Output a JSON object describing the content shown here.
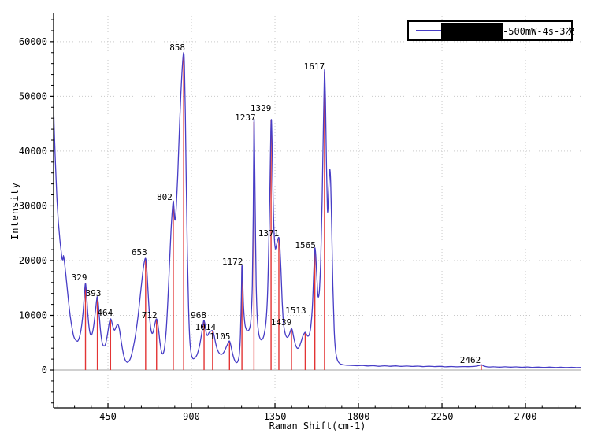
{
  "axes": {
    "x_title": "Raman Shift(cm-1)",
    "y_title": "Intensity"
  },
  "legend": {
    "label": "-500mW-4s-3次",
    "redacted": true,
    "position": "top-right"
  },
  "colors": {
    "line": "#473dc6",
    "peak_marker": "#e33434",
    "grid_dotted": "#c9c9c9",
    "zero_line": "#b3b3b3",
    "axis": "#000000",
    "text": "#000000",
    "background": "#ffffff"
  },
  "chart_data": {
    "type": "line",
    "title": "",
    "xlabel": "Raman Shift(cm-1)",
    "ylabel": "Intensity",
    "xlim": [
      157,
      2997
    ],
    "ylim": [
      -6900,
      65300
    ],
    "x_major_ticks": [
      450,
      900,
      1350,
      1800,
      2250,
      2700
    ],
    "x_minor_step": 90,
    "y_major_ticks": [
      0,
      10000,
      20000,
      30000,
      40000,
      50000,
      60000
    ],
    "y_minor_step": 2000,
    "grid": "dotted-at-major-ticks",
    "legend_entries": [
      {
        "label": "-500mW-4s-3次",
        "color": "#473dc6"
      }
    ],
    "peaks": [
      {
        "label": "329",
        "x": 329,
        "intensity": 15800,
        "label_offset": [
          -8,
          -8
        ]
      },
      {
        "label": "393",
        "x": 393,
        "intensity": 13400,
        "label_offset": [
          -5,
          -5
        ]
      },
      {
        "label": "464",
        "x": 464,
        "intensity": 9350,
        "label_offset": [
          -7,
          -8
        ]
      },
      {
        "label": "653",
        "x": 653,
        "intensity": 20400,
        "label_offset": [
          -8,
          -8
        ]
      },
      {
        "label": "712",
        "x": 712,
        "intensity": 9350,
        "label_offset": [
          -9,
          -5
        ]
      },
      {
        "label": "802",
        "x": 802,
        "intensity": 30900,
        "label_offset": [
          -11,
          -5
        ]
      },
      {
        "label": "858",
        "x": 858,
        "intensity": 58000,
        "label_offset": [
          -8,
          -7
        ]
      },
      {
        "label": "968",
        "x": 968,
        "intensity": 9100,
        "label_offset": [
          -7,
          -7
        ]
      },
      {
        "label": "1014",
        "x": 1014,
        "intensity": 7200,
        "label_offset": [
          -9,
          -5
        ]
      },
      {
        "label": "1105",
        "x": 1105,
        "intensity": 5300,
        "label_offset": [
          -12,
          -6
        ]
      },
      {
        "label": "1172",
        "x": 1172,
        "intensity": 19000,
        "label_offset": [
          -12,
          -6
        ]
      },
      {
        "label": "1237",
        "x": 1237,
        "intensity": 45300,
        "label_offset": [
          -11,
          -6
        ]
      },
      {
        "label": "1329",
        "x": 1329,
        "intensity": 45600,
        "label_offset": [
          -13,
          -16
        ]
      },
      {
        "label": "1371",
        "x": 1371,
        "intensity": 24200,
        "label_offset": [
          -13,
          -6
        ]
      },
      {
        "label": "1439",
        "x": 1439,
        "intensity": 7600,
        "label_offset": [
          -13,
          -8
        ]
      },
      {
        "label": "1513",
        "x": 1513,
        "intensity": 6900,
        "label_offset": [
          -12,
          -28
        ]
      },
      {
        "label": "1565",
        "x": 1565,
        "intensity": 22300,
        "label_offset": [
          -12,
          -4
        ]
      },
      {
        "label": "1617",
        "x": 1617,
        "intensity": 54400,
        "label_offset": [
          -13,
          -8
        ]
      },
      {
        "label": "2462",
        "x": 2462,
        "intensity": 1000,
        "label_offset": [
          -14,
          -6
        ]
      }
    ],
    "series": [
      {
        "name": "-500mW-4s-3次",
        "color": "#473dc6",
        "points": [
          [
            157,
            48500
          ],
          [
            162,
            42500
          ],
          [
            168,
            37000
          ],
          [
            175,
            31500
          ],
          [
            183,
            27000
          ],
          [
            191,
            23800
          ],
          [
            198,
            21600
          ],
          [
            203,
            20300
          ],
          [
            207,
            20200
          ],
          [
            210,
            20900
          ],
          [
            214,
            20200
          ],
          [
            220,
            18400
          ],
          [
            228,
            15800
          ],
          [
            237,
            12800
          ],
          [
            247,
            9800
          ],
          [
            257,
            7600
          ],
          [
            266,
            6100
          ],
          [
            276,
            5500
          ],
          [
            287,
            5300
          ],
          [
            297,
            6100
          ],
          [
            307,
            7800
          ],
          [
            316,
            10600
          ],
          [
            324,
            14200
          ],
          [
            329,
            15800
          ],
          [
            334,
            14200
          ],
          [
            341,
            10600
          ],
          [
            348,
            7900
          ],
          [
            355,
            6600
          ],
          [
            363,
            6500
          ],
          [
            372,
            7800
          ],
          [
            382,
            10600
          ],
          [
            389,
            12800
          ],
          [
            393,
            13400
          ],
          [
            398,
            12200
          ],
          [
            404,
            9600
          ],
          [
            411,
            6900
          ],
          [
            419,
            5000
          ],
          [
            428,
            4400
          ],
          [
            437,
            4800
          ],
          [
            448,
            6600
          ],
          [
            457,
            8600
          ],
          [
            464,
            9350
          ],
          [
            470,
            8900
          ],
          [
            477,
            7900
          ],
          [
            485,
            7300
          ],
          [
            493,
            7800
          ],
          [
            500,
            8300
          ],
          [
            506,
            8200
          ],
          [
            513,
            7200
          ],
          [
            521,
            5400
          ],
          [
            530,
            3500
          ],
          [
            540,
            2100
          ],
          [
            550,
            1500
          ],
          [
            560,
            1500
          ],
          [
            572,
            2200
          ],
          [
            585,
            3900
          ],
          [
            598,
            6300
          ],
          [
            612,
            9800
          ],
          [
            626,
            14200
          ],
          [
            638,
            17900
          ],
          [
            647,
            19900
          ],
          [
            653,
            20400
          ],
          [
            658,
            19200
          ],
          [
            664,
            15800
          ],
          [
            671,
            11500
          ],
          [
            678,
            8400
          ],
          [
            685,
            6900
          ],
          [
            692,
            6800
          ],
          [
            700,
            7900
          ],
          [
            707,
            9000
          ],
          [
            712,
            9350
          ],
          [
            717,
            8800
          ],
          [
            724,
            7000
          ],
          [
            731,
            4900
          ],
          [
            739,
            3300
          ],
          [
            747,
            3000
          ],
          [
            755,
            4100
          ],
          [
            764,
            7300
          ],
          [
            773,
            12800
          ],
          [
            782,
            19600
          ],
          [
            790,
            25500
          ],
          [
            797,
            29300
          ],
          [
            802,
            30900
          ],
          [
            806,
            29400
          ],
          [
            810,
            27500
          ],
          [
            814,
            27900
          ],
          [
            819,
            30200
          ],
          [
            826,
            35500
          ],
          [
            834,
            43000
          ],
          [
            843,
            50500
          ],
          [
            851,
            55600
          ],
          [
            858,
            58000
          ],
          [
            862,
            55500
          ],
          [
            867,
            46500
          ],
          [
            872,
            34500
          ],
          [
            878,
            21500
          ],
          [
            884,
            11800
          ],
          [
            891,
            5600
          ],
          [
            899,
            2900
          ],
          [
            908,
            2100
          ],
          [
            918,
            2200
          ],
          [
            930,
            2800
          ],
          [
            942,
            4200
          ],
          [
            954,
            6400
          ],
          [
            963,
            8500
          ],
          [
            968,
            9100
          ],
          [
            973,
            8300
          ],
          [
            979,
            6900
          ],
          [
            986,
            6300
          ],
          [
            994,
            6800
          ],
          [
            1004,
            7100
          ],
          [
            1014,
            7200
          ],
          [
            1021,
            6500
          ],
          [
            1030,
            5000
          ],
          [
            1040,
            3700
          ],
          [
            1052,
            3000
          ],
          [
            1064,
            2900
          ],
          [
            1077,
            3400
          ],
          [
            1090,
            4400
          ],
          [
            1100,
            5100
          ],
          [
            1105,
            5300
          ],
          [
            1111,
            4700
          ],
          [
            1119,
            3400
          ],
          [
            1129,
            2100
          ],
          [
            1140,
            1400
          ],
          [
            1150,
            1600
          ],
          [
            1158,
            2900
          ],
          [
            1164,
            6500
          ],
          [
            1169,
            13500
          ],
          [
            1172,
            19000
          ],
          [
            1176,
            16500
          ],
          [
            1181,
            11500
          ],
          [
            1188,
            8400
          ],
          [
            1196,
            7400
          ],
          [
            1205,
            7200
          ],
          [
            1213,
            7600
          ],
          [
            1221,
            9400
          ],
          [
            1228,
            15500
          ],
          [
            1233,
            28500
          ],
          [
            1237,
            45300
          ],
          [
            1240,
            40500
          ],
          [
            1244,
            28000
          ],
          [
            1249,
            15500
          ],
          [
            1255,
            9400
          ],
          [
            1262,
            6800
          ],
          [
            1271,
            5700
          ],
          [
            1281,
            5600
          ],
          [
            1291,
            6400
          ],
          [
            1301,
            8600
          ],
          [
            1309,
            13000
          ],
          [
            1316,
            21500
          ],
          [
            1323,
            33500
          ],
          [
            1328,
            43500
          ],
          [
            1331,
            45600
          ],
          [
            1335,
            40500
          ],
          [
            1340,
            31000
          ],
          [
            1346,
            24500
          ],
          [
            1352,
            22200
          ],
          [
            1358,
            22800
          ],
          [
            1365,
            23800
          ],
          [
            1371,
            24200
          ],
          [
            1376,
            22800
          ],
          [
            1382,
            18500
          ],
          [
            1389,
            12500
          ],
          [
            1396,
            8600
          ],
          [
            1405,
            6700
          ],
          [
            1415,
            6000
          ],
          [
            1425,
            6300
          ],
          [
            1433,
            7100
          ],
          [
            1439,
            7600
          ],
          [
            1444,
            7200
          ],
          [
            1451,
            6000
          ],
          [
            1460,
            4700
          ],
          [
            1470,
            4000
          ],
          [
            1480,
            4200
          ],
          [
            1490,
            5100
          ],
          [
            1500,
            6200
          ],
          [
            1508,
            6700
          ],
          [
            1513,
            6900
          ],
          [
            1519,
            6600
          ],
          [
            1527,
            6200
          ],
          [
            1535,
            6500
          ],
          [
            1543,
            7900
          ],
          [
            1551,
            11200
          ],
          [
            1558,
            16800
          ],
          [
            1563,
            21200
          ],
          [
            1566,
            22300
          ],
          [
            1570,
            20800
          ],
          [
            1576,
            16800
          ],
          [
            1581,
            13900
          ],
          [
            1585,
            13400
          ],
          [
            1590,
            14800
          ],
          [
            1597,
            20500
          ],
          [
            1604,
            31000
          ],
          [
            1611,
            44500
          ],
          [
            1616,
            53500
          ],
          [
            1618,
            54400
          ],
          [
            1622,
            49500
          ],
          [
            1627,
            38500
          ],
          [
            1632,
            30000
          ],
          [
            1635,
            29200
          ],
          [
            1639,
            32500
          ],
          [
            1644,
            36000
          ],
          [
            1647,
            36400
          ],
          [
            1651,
            33500
          ],
          [
            1656,
            26000
          ],
          [
            1662,
            15500
          ],
          [
            1669,
            7400
          ],
          [
            1677,
            3400
          ],
          [
            1687,
            1800
          ],
          [
            1699,
            1200
          ],
          [
            1714,
            1000
          ],
          [
            1735,
            900
          ],
          [
            1760,
            850
          ],
          [
            1790,
            800
          ],
          [
            1820,
            850
          ],
          [
            1850,
            750
          ],
          [
            1880,
            800
          ],
          [
            1910,
            700
          ],
          [
            1940,
            780
          ],
          [
            1970,
            700
          ],
          [
            2000,
            760
          ],
          [
            2030,
            680
          ],
          [
            2060,
            740
          ],
          [
            2090,
            660
          ],
          [
            2120,
            720
          ],
          [
            2150,
            640
          ],
          [
            2180,
            700
          ],
          [
            2210,
            640
          ],
          [
            2240,
            680
          ],
          [
            2270,
            600
          ],
          [
            2300,
            650
          ],
          [
            2330,
            600
          ],
          [
            2360,
            640
          ],
          [
            2390,
            620
          ],
          [
            2415,
            650
          ],
          [
            2435,
            720
          ],
          [
            2450,
            820
          ],
          [
            2462,
            1000
          ],
          [
            2472,
            800
          ],
          [
            2485,
            650
          ],
          [
            2505,
            560
          ],
          [
            2530,
            600
          ],
          [
            2560,
            540
          ],
          [
            2590,
            590
          ],
          [
            2620,
            530
          ],
          [
            2650,
            580
          ],
          [
            2680,
            500
          ],
          [
            2710,
            560
          ],
          [
            2740,
            490
          ],
          [
            2770,
            540
          ],
          [
            2800,
            480
          ],
          [
            2830,
            530
          ],
          [
            2860,
            470
          ],
          [
            2890,
            520
          ],
          [
            2920,
            460
          ],
          [
            2950,
            500
          ],
          [
            2975,
            450
          ],
          [
            2997,
            470
          ]
        ]
      }
    ]
  }
}
